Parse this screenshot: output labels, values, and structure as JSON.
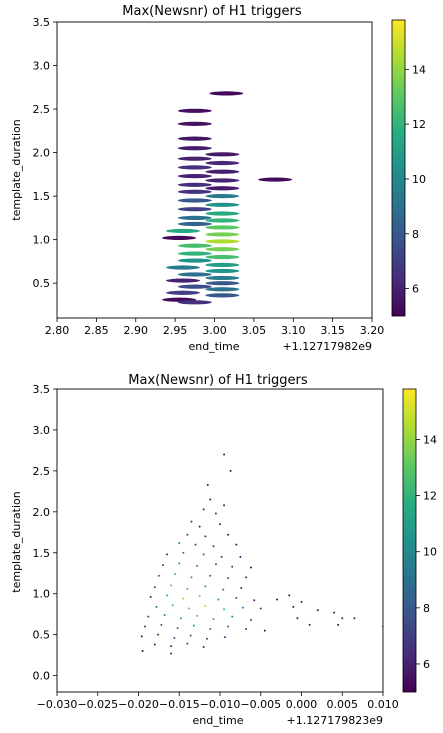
{
  "colormap": {
    "name": "viridis",
    "stops": [
      "#440154",
      "#472d7b",
      "#3b528b",
      "#2c728e",
      "#21918c",
      "#28ae80",
      "#5ec962",
      "#addc30",
      "#fde725"
    ]
  },
  "chart_data": [
    {
      "type": "scatter",
      "marker": "horizontal-ellipse",
      "title": "Max(Newsnr) of H1 triggers",
      "xlabel": "end_time",
      "ylabel": "template_duration",
      "offset_label": "+1.12717982e9",
      "xlim": [
        2.8,
        3.2
      ],
      "ylim": [
        0.1,
        3.5
      ],
      "xticks": [
        "2.80",
        "2.85",
        "2.90",
        "2.95",
        "3.00",
        "3.05",
        "3.10",
        "3.15",
        "3.20"
      ],
      "yticks": [
        "0.5",
        "1.0",
        "1.5",
        "2.0",
        "2.5",
        "3.0",
        "3.5"
      ],
      "colorbar": {
        "min": 5,
        "max": 15.8,
        "ticks": [
          "6",
          "8",
          "10",
          "12",
          "14"
        ]
      },
      "points": [
        {
          "x": 3.015,
          "y": 2.68,
          "c": 5.2
        },
        {
          "x": 3.077,
          "y": 1.69,
          "c": 5.3
        },
        {
          "x": 2.975,
          "y": 2.48,
          "c": 5.4
        },
        {
          "x": 2.975,
          "y": 2.33,
          "c": 5.5
        },
        {
          "x": 2.975,
          "y": 2.16,
          "c": 5.6
        },
        {
          "x": 2.975,
          "y": 2.05,
          "c": 5.8
        },
        {
          "x": 3.01,
          "y": 1.98,
          "c": 5.7
        },
        {
          "x": 2.975,
          "y": 1.93,
          "c": 6.0
        },
        {
          "x": 3.01,
          "y": 1.88,
          "c": 6.2
        },
        {
          "x": 2.975,
          "y": 1.83,
          "c": 6.5
        },
        {
          "x": 3.01,
          "y": 1.78,
          "c": 5.9
        },
        {
          "x": 2.975,
          "y": 1.73,
          "c": 6.0
        },
        {
          "x": 3.01,
          "y": 1.68,
          "c": 6.0
        },
        {
          "x": 2.975,
          "y": 1.63,
          "c": 6.4
        },
        {
          "x": 3.01,
          "y": 1.59,
          "c": 5.8
        },
        {
          "x": 2.975,
          "y": 1.55,
          "c": 6.5
        },
        {
          "x": 3.01,
          "y": 1.5,
          "c": 9.5
        },
        {
          "x": 2.975,
          "y": 1.45,
          "c": 8.0
        },
        {
          "x": 3.01,
          "y": 1.4,
          "c": 10.5
        },
        {
          "x": 2.975,
          "y": 1.35,
          "c": 7.0
        },
        {
          "x": 3.01,
          "y": 1.3,
          "c": 11.5
        },
        {
          "x": 2.975,
          "y": 1.25,
          "c": 9.0
        },
        {
          "x": 3.01,
          "y": 1.22,
          "c": 12.0
        },
        {
          "x": 2.975,
          "y": 1.18,
          "c": 8.5
        },
        {
          "x": 3.01,
          "y": 1.14,
          "c": 13.0
        },
        {
          "x": 2.96,
          "y": 1.1,
          "c": 11.5
        },
        {
          "x": 3.01,
          "y": 1.06,
          "c": 13.5
        },
        {
          "x": 2.955,
          "y": 1.02,
          "c": 5.2
        },
        {
          "x": 3.01,
          "y": 0.98,
          "c": 14.5
        },
        {
          "x": 2.975,
          "y": 0.93,
          "c": 12.5
        },
        {
          "x": 3.01,
          "y": 0.89,
          "c": 13.5
        },
        {
          "x": 2.975,
          "y": 0.84,
          "c": 12.0
        },
        {
          "x": 3.01,
          "y": 0.8,
          "c": 12.5
        },
        {
          "x": 2.975,
          "y": 0.76,
          "c": 10.5
        },
        {
          "x": 3.01,
          "y": 0.71,
          "c": 11.0
        },
        {
          "x": 2.96,
          "y": 0.68,
          "c": 9.5
        },
        {
          "x": 3.01,
          "y": 0.64,
          "c": 10.5
        },
        {
          "x": 2.975,
          "y": 0.6,
          "c": 9.0
        },
        {
          "x": 3.01,
          "y": 0.56,
          "c": 9.5
        },
        {
          "x": 2.96,
          "y": 0.53,
          "c": 6.0
        },
        {
          "x": 3.01,
          "y": 0.5,
          "c": 8.0
        },
        {
          "x": 2.975,
          "y": 0.46,
          "c": 7.5
        },
        {
          "x": 3.01,
          "y": 0.43,
          "c": 9.0
        },
        {
          "x": 2.96,
          "y": 0.39,
          "c": 7.0
        },
        {
          "x": 3.01,
          "y": 0.36,
          "c": 8.0
        },
        {
          "x": 2.955,
          "y": 0.31,
          "c": 5.2
        },
        {
          "x": 2.975,
          "y": 0.28,
          "c": 6.5
        }
      ]
    },
    {
      "type": "scatter",
      "marker": "dot",
      "title": "Max(Newsnr) of H1 triggers",
      "xlabel": "end_time",
      "ylabel": "template_duration",
      "offset_label": "+1.127179823e9",
      "xlim": [
        -0.03,
        0.01
      ],
      "ylim": [
        -0.2,
        3.5
      ],
      "xticks": [
        "−0.030",
        "−0.025",
        "−0.020",
        "−0.015",
        "−0.010",
        "−0.005",
        "0.000",
        "0.005",
        "0.010"
      ],
      "yticks": [
        "0.0",
        "0.5",
        "1.0",
        "1.5",
        "2.0",
        "2.5",
        "3.0",
        "3.5"
      ],
      "colorbar": {
        "min": 5,
        "max": 15.8,
        "ticks": [
          "6",
          "8",
          "10",
          "12",
          "14"
        ]
      },
      "points": [
        {
          "x": -0.0095,
          "y": 2.7,
          "c": 5.2
        },
        {
          "x": -0.0087,
          "y": 2.5,
          "c": 5.4
        },
        {
          "x": -0.0115,
          "y": 2.33,
          "c": 5.6
        },
        {
          "x": -0.0112,
          "y": 2.15,
          "c": 5.8
        },
        {
          "x": -0.012,
          "y": 2.03,
          "c": 6.0
        },
        {
          "x": -0.0105,
          "y": 1.98,
          "c": 6.2
        },
        {
          "x": -0.0095,
          "y": 2.08,
          "c": 5.5
        },
        {
          "x": -0.0135,
          "y": 1.88,
          "c": 6.5
        },
        {
          "x": -0.0125,
          "y": 1.82,
          "c": 6.0
        },
        {
          "x": -0.01,
          "y": 1.85,
          "c": 5.8
        },
        {
          "x": -0.014,
          "y": 1.72,
          "c": 7.0
        },
        {
          "x": -0.0118,
          "y": 1.7,
          "c": 6.3
        },
        {
          "x": -0.009,
          "y": 1.72,
          "c": 5.7
        },
        {
          "x": -0.015,
          "y": 1.62,
          "c": 10.5
        },
        {
          "x": -0.013,
          "y": 1.6,
          "c": 7.5
        },
        {
          "x": -0.0108,
          "y": 1.58,
          "c": 6.4
        },
        {
          "x": -0.008,
          "y": 1.6,
          "c": 5.6
        },
        {
          "x": -0.0165,
          "y": 1.48,
          "c": 6.2
        },
        {
          "x": -0.0145,
          "y": 1.5,
          "c": 9.0
        },
        {
          "x": -0.012,
          "y": 1.48,
          "c": 8.0
        },
        {
          "x": -0.0098,
          "y": 1.45,
          "c": 6.5
        },
        {
          "x": -0.0075,
          "y": 1.45,
          "c": 5.8
        },
        {
          "x": -0.017,
          "y": 1.35,
          "c": 7.0
        },
        {
          "x": -0.015,
          "y": 1.37,
          "c": 11.0
        },
        {
          "x": -0.0128,
          "y": 1.34,
          "c": 10.0
        },
        {
          "x": -0.0105,
          "y": 1.36,
          "c": 7.5
        },
        {
          "x": -0.0085,
          "y": 1.33,
          "c": 6.5
        },
        {
          "x": -0.0062,
          "y": 1.32,
          "c": 5.5
        },
        {
          "x": -0.0175,
          "y": 1.22,
          "c": 8.0
        },
        {
          "x": -0.0155,
          "y": 1.24,
          "c": 12.0
        },
        {
          "x": -0.0135,
          "y": 1.2,
          "c": 11.0
        },
        {
          "x": -0.0112,
          "y": 1.22,
          "c": 9.0
        },
        {
          "x": -0.009,
          "y": 1.19,
          "c": 7.5
        },
        {
          "x": -0.0068,
          "y": 1.2,
          "c": 6.0
        },
        {
          "x": -0.018,
          "y": 1.08,
          "c": 7.0
        },
        {
          "x": -0.016,
          "y": 1.1,
          "c": 13.0
        },
        {
          "x": -0.014,
          "y": 1.06,
          "c": 12.5
        },
        {
          "x": -0.0118,
          "y": 1.09,
          "c": 10.5
        },
        {
          "x": -0.0096,
          "y": 1.05,
          "c": 8.5
        },
        {
          "x": -0.0074,
          "y": 1.07,
          "c": 6.5
        },
        {
          "x": -0.0185,
          "y": 0.96,
          "c": 6.0
        },
        {
          "x": -0.0165,
          "y": 0.98,
          "c": 11.5
        },
        {
          "x": -0.0145,
          "y": 0.94,
          "c": 14.0
        },
        {
          "x": -0.0125,
          "y": 0.97,
          "c": 13.5
        },
        {
          "x": -0.0102,
          "y": 0.93,
          "c": 11.0
        },
        {
          "x": -0.008,
          "y": 0.95,
          "c": 8.0
        },
        {
          "x": -0.0058,
          "y": 0.92,
          "c": 6.0
        },
        {
          "x": -0.0178,
          "y": 0.84,
          "c": 9.0
        },
        {
          "x": -0.0158,
          "y": 0.86,
          "c": 12.5
        },
        {
          "x": -0.0138,
          "y": 0.82,
          "c": 13.0
        },
        {
          "x": -0.0118,
          "y": 0.85,
          "c": 14.5
        },
        {
          "x": -0.0095,
          "y": 0.81,
          "c": 12.0
        },
        {
          "x": -0.0072,
          "y": 0.83,
          "c": 9.5
        },
        {
          "x": -0.005,
          "y": 0.82,
          "c": 6.5
        },
        {
          "x": -0.003,
          "y": 0.93,
          "c": 5.5
        },
        {
          "x": -0.0015,
          "y": 0.98,
          "c": 5.4
        },
        {
          "x": 0.0,
          "y": 0.9,
          "c": 5.6
        },
        {
          "x": -0.001,
          "y": 0.84,
          "c": 5.5
        },
        {
          "x": 0.002,
          "y": 0.8,
          "c": 5.4
        },
        {
          "x": 0.004,
          "y": 0.77,
          "c": 5.6
        },
        {
          "x": 0.005,
          "y": 0.7,
          "c": 5.8
        },
        {
          "x": 0.0065,
          "y": 0.7,
          "c": 5.7
        },
        {
          "x": -0.0188,
          "y": 0.72,
          "c": 7.5
        },
        {
          "x": -0.0168,
          "y": 0.74,
          "c": 9.5
        },
        {
          "x": -0.0148,
          "y": 0.7,
          "c": 11.0
        },
        {
          "x": -0.0128,
          "y": 0.73,
          "c": 12.5
        },
        {
          "x": -0.0108,
          "y": 0.69,
          "c": 11.5
        },
        {
          "x": -0.0085,
          "y": 0.72,
          "c": 10.0
        },
        {
          "x": -0.0062,
          "y": 0.68,
          "c": 7.0
        },
        {
          "x": -0.0005,
          "y": 0.7,
          "c": 5.6
        },
        {
          "x": 0.001,
          "y": 0.62,
          "c": 5.5
        },
        {
          "x": 0.0045,
          "y": 0.62,
          "c": 5.4
        },
        {
          "x": -0.0192,
          "y": 0.6,
          "c": 6.5
        },
        {
          "x": -0.0172,
          "y": 0.62,
          "c": 8.0
        },
        {
          "x": -0.0152,
          "y": 0.58,
          "c": 9.5
        },
        {
          "x": -0.0132,
          "y": 0.61,
          "c": 10.5
        },
        {
          "x": -0.0112,
          "y": 0.57,
          "c": 9.0
        },
        {
          "x": -0.009,
          "y": 0.6,
          "c": 8.0
        },
        {
          "x": -0.0068,
          "y": 0.57,
          "c": 6.5
        },
        {
          "x": -0.0045,
          "y": 0.55,
          "c": 5.6
        },
        {
          "x": -0.0196,
          "y": 0.48,
          "c": 5.4
        },
        {
          "x": -0.0176,
          "y": 0.5,
          "c": 6.5
        },
        {
          "x": -0.0156,
          "y": 0.46,
          "c": 7.5
        },
        {
          "x": -0.0136,
          "y": 0.49,
          "c": 8.5
        },
        {
          "x": -0.0116,
          "y": 0.45,
          "c": 7.0
        },
        {
          "x": -0.0094,
          "y": 0.47,
          "c": 6.5
        },
        {
          "x": -0.018,
          "y": 0.38,
          "c": 6.0
        },
        {
          "x": -0.016,
          "y": 0.36,
          "c": 6.5
        },
        {
          "x": -0.014,
          "y": 0.39,
          "c": 7.0
        },
        {
          "x": -0.012,
          "y": 0.35,
          "c": 6.0
        },
        {
          "x": -0.0195,
          "y": 0.3,
          "c": 5.2
        },
        {
          "x": -0.016,
          "y": 0.27,
          "c": 5.5
        },
        {
          "x": 0.01,
          "y": 0.6,
          "c": 5.3
        }
      ]
    }
  ]
}
